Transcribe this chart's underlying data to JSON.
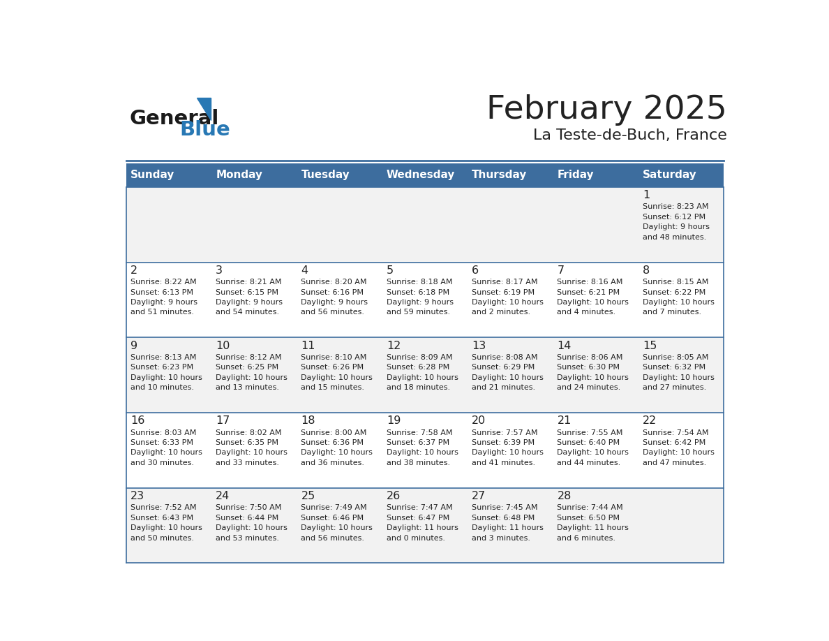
{
  "title": "February 2025",
  "subtitle": "La Teste-de-Buch, France",
  "header_color": "#3d6d9e",
  "header_text_color": "#ffffff",
  "cell_bg_even": "#f2f2f2",
  "cell_bg_odd": "#ffffff",
  "border_color": "#3d6d9e",
  "text_color": "#222222",
  "days_of_week": [
    "Sunday",
    "Monday",
    "Tuesday",
    "Wednesday",
    "Thursday",
    "Friday",
    "Saturday"
  ],
  "weeks": [
    [
      {
        "day": null,
        "info": null
      },
      {
        "day": null,
        "info": null
      },
      {
        "day": null,
        "info": null
      },
      {
        "day": null,
        "info": null
      },
      {
        "day": null,
        "info": null
      },
      {
        "day": null,
        "info": null
      },
      {
        "day": 1,
        "info": "Sunrise: 8:23 AM\nSunset: 6:12 PM\nDaylight: 9 hours\nand 48 minutes."
      }
    ],
    [
      {
        "day": 2,
        "info": "Sunrise: 8:22 AM\nSunset: 6:13 PM\nDaylight: 9 hours\nand 51 minutes."
      },
      {
        "day": 3,
        "info": "Sunrise: 8:21 AM\nSunset: 6:15 PM\nDaylight: 9 hours\nand 54 minutes."
      },
      {
        "day": 4,
        "info": "Sunrise: 8:20 AM\nSunset: 6:16 PM\nDaylight: 9 hours\nand 56 minutes."
      },
      {
        "day": 5,
        "info": "Sunrise: 8:18 AM\nSunset: 6:18 PM\nDaylight: 9 hours\nand 59 minutes."
      },
      {
        "day": 6,
        "info": "Sunrise: 8:17 AM\nSunset: 6:19 PM\nDaylight: 10 hours\nand 2 minutes."
      },
      {
        "day": 7,
        "info": "Sunrise: 8:16 AM\nSunset: 6:21 PM\nDaylight: 10 hours\nand 4 minutes."
      },
      {
        "day": 8,
        "info": "Sunrise: 8:15 AM\nSunset: 6:22 PM\nDaylight: 10 hours\nand 7 minutes."
      }
    ],
    [
      {
        "day": 9,
        "info": "Sunrise: 8:13 AM\nSunset: 6:23 PM\nDaylight: 10 hours\nand 10 minutes."
      },
      {
        "day": 10,
        "info": "Sunrise: 8:12 AM\nSunset: 6:25 PM\nDaylight: 10 hours\nand 13 minutes."
      },
      {
        "day": 11,
        "info": "Sunrise: 8:10 AM\nSunset: 6:26 PM\nDaylight: 10 hours\nand 15 minutes."
      },
      {
        "day": 12,
        "info": "Sunrise: 8:09 AM\nSunset: 6:28 PM\nDaylight: 10 hours\nand 18 minutes."
      },
      {
        "day": 13,
        "info": "Sunrise: 8:08 AM\nSunset: 6:29 PM\nDaylight: 10 hours\nand 21 minutes."
      },
      {
        "day": 14,
        "info": "Sunrise: 8:06 AM\nSunset: 6:30 PM\nDaylight: 10 hours\nand 24 minutes."
      },
      {
        "day": 15,
        "info": "Sunrise: 8:05 AM\nSunset: 6:32 PM\nDaylight: 10 hours\nand 27 minutes."
      }
    ],
    [
      {
        "day": 16,
        "info": "Sunrise: 8:03 AM\nSunset: 6:33 PM\nDaylight: 10 hours\nand 30 minutes."
      },
      {
        "day": 17,
        "info": "Sunrise: 8:02 AM\nSunset: 6:35 PM\nDaylight: 10 hours\nand 33 minutes."
      },
      {
        "day": 18,
        "info": "Sunrise: 8:00 AM\nSunset: 6:36 PM\nDaylight: 10 hours\nand 36 minutes."
      },
      {
        "day": 19,
        "info": "Sunrise: 7:58 AM\nSunset: 6:37 PM\nDaylight: 10 hours\nand 38 minutes."
      },
      {
        "day": 20,
        "info": "Sunrise: 7:57 AM\nSunset: 6:39 PM\nDaylight: 10 hours\nand 41 minutes."
      },
      {
        "day": 21,
        "info": "Sunrise: 7:55 AM\nSunset: 6:40 PM\nDaylight: 10 hours\nand 44 minutes."
      },
      {
        "day": 22,
        "info": "Sunrise: 7:54 AM\nSunset: 6:42 PM\nDaylight: 10 hours\nand 47 minutes."
      }
    ],
    [
      {
        "day": 23,
        "info": "Sunrise: 7:52 AM\nSunset: 6:43 PM\nDaylight: 10 hours\nand 50 minutes."
      },
      {
        "day": 24,
        "info": "Sunrise: 7:50 AM\nSunset: 6:44 PM\nDaylight: 10 hours\nand 53 minutes."
      },
      {
        "day": 25,
        "info": "Sunrise: 7:49 AM\nSunset: 6:46 PM\nDaylight: 10 hours\nand 56 minutes."
      },
      {
        "day": 26,
        "info": "Sunrise: 7:47 AM\nSunset: 6:47 PM\nDaylight: 11 hours\nand 0 minutes."
      },
      {
        "day": 27,
        "info": "Sunrise: 7:45 AM\nSunset: 6:48 PM\nDaylight: 11 hours\nand 3 minutes."
      },
      {
        "day": 28,
        "info": "Sunrise: 7:44 AM\nSunset: 6:50 PM\nDaylight: 11 hours\nand 6 minutes."
      },
      {
        "day": null,
        "info": null
      }
    ]
  ],
  "logo_text_general": "General",
  "logo_text_blue": "Blue",
  "logo_color_general": "#1a1a1a",
  "logo_color_blue": "#2878b4",
  "logo_triangle_color": "#2878b4"
}
